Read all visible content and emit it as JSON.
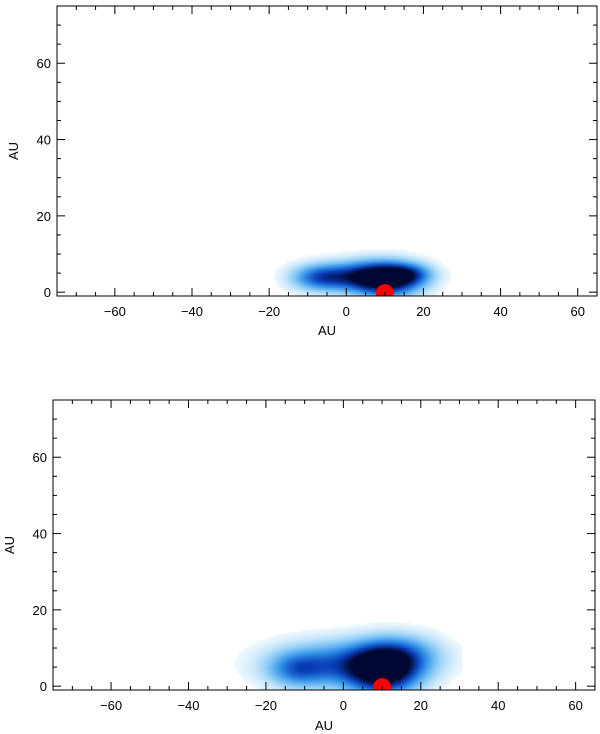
{
  "chart_data": [
    {
      "type": "heatmap",
      "xlabel": "AU",
      "ylabel": "AU",
      "xlim": [
        -75,
        65
      ],
      "ylim": [
        -1,
        75
      ],
      "xticks": [
        -60,
        -40,
        -20,
        0,
        20,
        40,
        60
      ],
      "yticks": [
        0,
        20,
        40,
        60
      ],
      "x_tick_labels": [
        "−60",
        "−40",
        "−20",
        "0",
        "20",
        "40",
        "60"
      ],
      "y_tick_labels": [
        "0",
        "20",
        "40",
        "60"
      ],
      "grid": false,
      "colormap": [
        "#ffffff",
        "#8fcdf6",
        "#2f8fe8",
        "#0a3fb8",
        "#000833"
      ],
      "density_blobs": [
        {
          "x": 10,
          "y": 3,
          "sx": 6,
          "sy": 3,
          "amp": 1.0
        },
        {
          "x": 4,
          "y": 4,
          "sx": 8,
          "sy": 2.5,
          "amp": 0.6
        },
        {
          "x": -7,
          "y": 3.5,
          "sx": 5,
          "sy": 2.3,
          "amp": 0.55
        },
        {
          "x": 16,
          "y": 4.5,
          "sx": 4,
          "sy": 1.8,
          "amp": 0.4
        }
      ],
      "source": {
        "x": 10,
        "y": 0,
        "color": "#ff0000"
      }
    },
    {
      "type": "heatmap",
      "xlabel": "AU",
      "ylabel": "AU",
      "xlim": [
        -75,
        65
      ],
      "ylim": [
        -1,
        75
      ],
      "xticks": [
        -60,
        -40,
        -20,
        0,
        20,
        40,
        60
      ],
      "yticks": [
        0,
        20,
        40,
        60
      ],
      "x_tick_labels": [
        "−60",
        "−40",
        "−20",
        "0",
        "20",
        "40",
        "60"
      ],
      "y_tick_labels": [
        "0",
        "20",
        "40",
        "60"
      ],
      "grid": false,
      "colormap": [
        "#ffffff",
        "#8fcdf6",
        "#2f8fe8",
        "#0a3fb8",
        "#000833"
      ],
      "density_blobs": [
        {
          "x": 10,
          "y": 3.5,
          "sx": 6,
          "sy": 4,
          "amp": 1.0
        },
        {
          "x": 0,
          "y": 5.5,
          "sx": 12,
          "sy": 4,
          "amp": 0.6
        },
        {
          "x": 14,
          "y": 8,
          "sx": 7,
          "sy": 3.5,
          "amp": 0.45
        },
        {
          "x": -12,
          "y": 4,
          "sx": 5,
          "sy": 3,
          "amp": 0.4
        }
      ],
      "source": {
        "x": 10,
        "y": 0,
        "color": "#ff0000"
      }
    }
  ]
}
